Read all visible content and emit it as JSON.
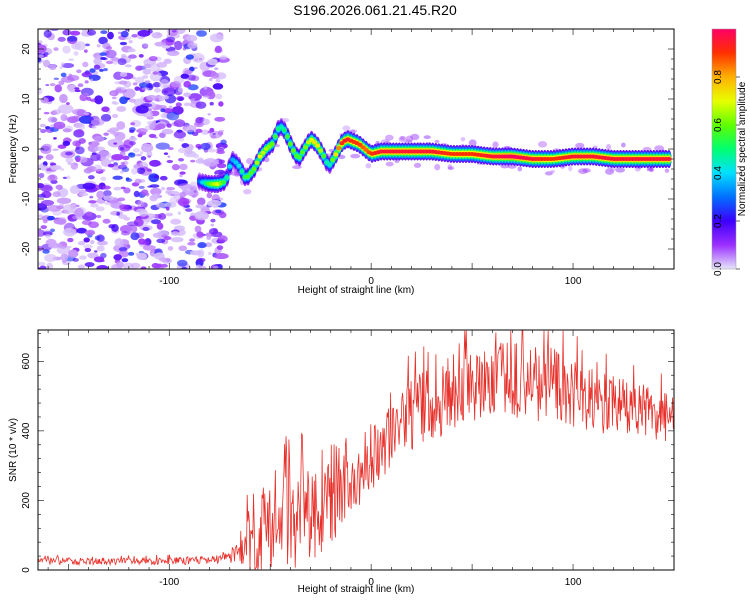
{
  "title": "S196.2026.061.21.45.R20",
  "chart_data": [
    {
      "type": "heatmap",
      "name": "spectrogram",
      "xlabel": "Height of straight line (km)",
      "ylabel": "Frequency (Hz)",
      "xlim": [
        -165,
        150
      ],
      "ylim": [
        -24,
        24
      ],
      "xticks": [
        -100,
        0,
        100
      ],
      "yticks": [
        -20,
        -10,
        0,
        10,
        20
      ],
      "colorbar": {
        "label": "Normalized spectral amplitude",
        "range": [
          0,
          1
        ],
        "ticks": [
          "0.0",
          "0.2",
          "0.4",
          "0.6",
          "0.8"
        ],
        "tick_values": [
          0.0,
          0.2,
          0.4,
          0.6,
          0.8
        ],
        "colors": [
          "#e6e6fa",
          "#9b2fff",
          "#3c00ff",
          "#0070ff",
          "#00e0ff",
          "#00ff70",
          "#60ff00",
          "#e8ff00",
          "#ffb000",
          "#ff3000",
          "#ff0066"
        ]
      },
      "ridge": {
        "x": [
          -85,
          -80,
          -76,
          -72,
          -69,
          -66,
          -62,
          -58,
          -55,
          -52,
          -49,
          -46,
          -44,
          -42,
          -39,
          -36,
          -33,
          -30,
          -27,
          -24,
          -21,
          -18,
          -15,
          -12,
          -9,
          -6,
          -3,
          0,
          5,
          10,
          20,
          30,
          40,
          50,
          60,
          70,
          80,
          90,
          100,
          110,
          120,
          130,
          140,
          148
        ],
        "f": [
          -6.5,
          -7,
          -7,
          -6.5,
          -2,
          -3,
          -6,
          -4,
          -1.5,
          0,
          1,
          4,
          4.5,
          3,
          0,
          -2,
          0,
          2,
          1,
          -1,
          -3.5,
          -1.5,
          1,
          2,
          1.5,
          1,
          0,
          -1,
          -0.5,
          -0.5,
          -0.5,
          -0.5,
          -1,
          -1,
          -1.5,
          -1.5,
          -2,
          -2,
          -1.5,
          -1.5,
          -2,
          -2,
          -2,
          -2
        ],
        "amp": [
          0.3,
          0.6,
          0.7,
          0.5,
          0.35,
          0.4,
          0.55,
          0.6,
          0.7,
          0.65,
          0.6,
          0.5,
          0.45,
          0.55,
          0.6,
          0.55,
          0.6,
          0.7,
          0.75,
          0.6,
          0.4,
          0.7,
          0.9,
          0.95,
          0.9,
          0.9,
          0.85,
          0.9,
          0.95,
          0.95,
          0.95,
          0.95,
          0.9,
          0.9,
          0.95,
          1.0,
          0.95,
          0.9,
          0.95,
          0.95,
          0.95,
          0.95,
          0.95,
          0.95
        ]
      }
    },
    {
      "type": "line",
      "name": "snr",
      "xlabel": "Height of straight line (km)",
      "ylabel": "SNR (10 * v/v)",
      "xlim": [
        -165,
        150
      ],
      "ylim": [
        0,
        690
      ],
      "xticks": [
        -100,
        0,
        100
      ],
      "yticks": [
        0,
        200,
        400,
        600
      ],
      "color": "#e8302a",
      "envelope": {
        "x": [
          -165,
          -140,
          -110,
          -80,
          -70,
          -64,
          -60,
          -56,
          -52,
          -48,
          -44,
          -40,
          -36,
          -32,
          -28,
          -24,
          -20,
          -16,
          -12,
          -8,
          -4,
          0,
          10,
          20,
          30,
          40,
          50,
          60,
          70,
          80,
          90,
          100,
          110,
          120,
          130,
          140,
          150
        ],
        "mean": [
          25,
          25,
          25,
          28,
          35,
          50,
          80,
          110,
          120,
          110,
          130,
          200,
          180,
          160,
          150,
          210,
          220,
          250,
          260,
          270,
          290,
          320,
          380,
          440,
          480,
          510,
          530,
          540,
          550,
          540,
          530,
          510,
          490,
          470,
          460,
          450,
          430
        ],
        "spread": [
          10,
          10,
          10,
          12,
          15,
          40,
          120,
          140,
          130,
          110,
          150,
          200,
          180,
          130,
          120,
          180,
          140,
          150,
          120,
          110,
          100,
          100,
          100,
          110,
          110,
          110,
          110,
          110,
          110,
          110,
          110,
          100,
          90,
          90,
          80,
          80,
          70
        ]
      }
    }
  ]
}
